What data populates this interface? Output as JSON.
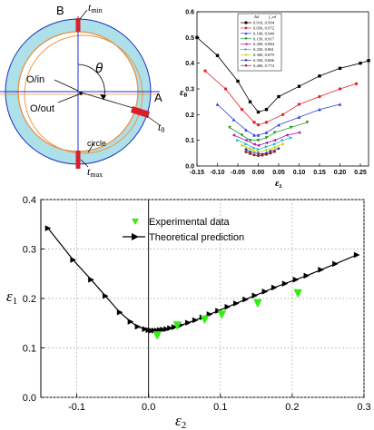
{
  "diagram": {
    "label_B": "B",
    "label_A": "A",
    "t_min": {
      "base": "t",
      "sub": "min"
    },
    "t_theta": {
      "base": "t",
      "sub": "θ"
    },
    "t_max": {
      "base": "t",
      "sub": "max"
    },
    "theta": "θ",
    "o_in": "O/in",
    "o_out": "O/out",
    "circle": "circle"
  },
  "chart_data": [
    {
      "type": "line",
      "xlabel": {
        "base": "ε",
        "sub": "z"
      },
      "ylabel": {
        "base": "ε",
        "sub": "θ"
      },
      "xlim": [
        -0.15,
        0.27
      ],
      "ylim": [
        0.0,
        0.6
      ],
      "xticks": [
        "-0.15",
        "-0.10",
        "-0.05",
        "0.00",
        "0.05",
        "0.10",
        "0.15",
        "0.20",
        "0.25"
      ],
      "yticks": [
        "0.0",
        "0.1",
        "0.2",
        "0.3",
        "0.4",
        "0.5",
        "0.6"
      ],
      "legend_header": [
        "Δd",
        "f_ed"
      ],
      "legend_position": "top-center",
      "series": [
        {
          "name": "0.010, 0.994",
          "color": "#000000",
          "marker": "square",
          "x": [
            -0.15,
            -0.1,
            -0.05,
            -0.02,
            0.0,
            0.02,
            0.05,
            0.1,
            0.15,
            0.2,
            0.25,
            0.27
          ],
          "y": [
            0.5,
            0.43,
            0.33,
            0.25,
            0.21,
            0.22,
            0.27,
            0.31,
            0.35,
            0.38,
            0.4,
            0.41
          ]
        },
        {
          "name": "0.050, 0.972",
          "color": "#e8202a",
          "marker": "circle",
          "x": [
            -0.13,
            -0.08,
            -0.04,
            -0.01,
            0.0,
            0.02,
            0.06,
            0.1,
            0.15,
            0.2,
            0.24
          ],
          "y": [
            0.37,
            0.3,
            0.22,
            0.17,
            0.16,
            0.17,
            0.2,
            0.24,
            0.27,
            0.3,
            0.32
          ]
        },
        {
          "name": "0.100, 0.940",
          "color": "#2a3fe0",
          "marker": "triangle-up",
          "x": [
            -0.1,
            -0.06,
            -0.03,
            -0.01,
            0.0,
            0.02,
            0.05,
            0.1,
            0.15,
            0.2
          ],
          "y": [
            0.24,
            0.18,
            0.14,
            0.12,
            0.12,
            0.13,
            0.16,
            0.19,
            0.22,
            0.24
          ]
        },
        {
          "name": "0.150, 0.917",
          "color": "#1f9a1f",
          "marker": "triangle-down",
          "x": [
            -0.07,
            -0.04,
            -0.02,
            0.0,
            0.02,
            0.04,
            0.08,
            0.12
          ],
          "y": [
            0.15,
            0.12,
            0.1,
            0.1,
            0.11,
            0.13,
            0.15,
            0.17
          ]
        },
        {
          "name": "0.200, 0.884",
          "color": "#b012b0",
          "marker": "triangle-left",
          "x": [
            -0.06,
            -0.03,
            -0.01,
            0.0,
            0.02,
            0.04,
            0.07,
            0.1
          ],
          "y": [
            0.12,
            0.1,
            0.085,
            0.08,
            0.09,
            0.1,
            0.12,
            0.13
          ]
        },
        {
          "name": "0.250, 0.861",
          "color": "#10c0c8",
          "marker": "triangle-right",
          "x": [
            -0.05,
            -0.03,
            -0.01,
            0.0,
            0.02,
            0.04,
            0.06,
            0.08
          ],
          "y": [
            0.1,
            0.085,
            0.07,
            0.065,
            0.075,
            0.085,
            0.1,
            0.11
          ]
        },
        {
          "name": "0.300, 0.879",
          "color": "#d8c400",
          "marker": "diamond",
          "x": [
            -0.04,
            -0.02,
            -0.01,
            0.0,
            0.02,
            0.04,
            0.06
          ],
          "y": [
            0.08,
            0.068,
            0.058,
            0.055,
            0.062,
            0.072,
            0.085
          ]
        },
        {
          "name": "0.350, 0.806",
          "color": "#203a90",
          "marker": "star",
          "x": [
            -0.03,
            -0.02,
            0.0,
            0.01,
            0.02,
            0.03,
            0.05
          ],
          "y": [
            0.065,
            0.055,
            0.048,
            0.046,
            0.05,
            0.058,
            0.068
          ]
        },
        {
          "name": "0.400, 0.774",
          "color": "#8a2020",
          "marker": "pentagon",
          "x": [
            -0.03,
            -0.02,
            -0.01,
            0.0,
            0.01,
            0.02,
            0.03,
            0.04
          ],
          "y": [
            0.055,
            0.048,
            0.043,
            0.04,
            0.042,
            0.045,
            0.05,
            0.056
          ]
        }
      ]
    },
    {
      "type": "line",
      "xlabel": {
        "base": "ε",
        "sub": "2"
      },
      "ylabel": {
        "base": "ε",
        "sub": "1"
      },
      "xlim": [
        -0.15,
        0.3
      ],
      "ylim": [
        0.0,
        0.4
      ],
      "xticks": [
        "-0.1",
        "0.0",
        "0.1",
        "0.2",
        "0.3"
      ],
      "yticks": [
        "0.0",
        "0.1",
        "0.2",
        "0.3",
        "0.4"
      ],
      "grid": true,
      "legend_position": "top-center",
      "series": [
        {
          "name": "Experimental data",
          "color": "#33ee11",
          "marker": "triangle-down",
          "style": "markers",
          "x": [
            0.012,
            0.04,
            0.078,
            0.102,
            0.152,
            0.208
          ],
          "y": [
            0.125,
            0.145,
            0.157,
            0.167,
            0.19,
            0.21
          ]
        },
        {
          "name": "Theoretical prediction",
          "color": "#000000",
          "marker": "triangle-right",
          "style": "line+markers",
          "x": [
            -0.14,
            -0.105,
            -0.08,
            -0.06,
            -0.04,
            -0.025,
            -0.015,
            -0.005,
            0.0,
            0.004,
            0.008,
            0.012,
            0.016,
            0.02,
            0.025,
            0.03,
            0.036,
            0.045,
            0.055,
            0.065,
            0.075,
            0.085,
            0.097,
            0.11,
            0.122,
            0.135,
            0.148,
            0.162,
            0.175,
            0.19,
            0.205,
            0.22,
            0.24,
            0.26,
            0.29
          ],
          "y": [
            0.342,
            0.278,
            0.238,
            0.205,
            0.172,
            0.153,
            0.143,
            0.138,
            0.136,
            0.135,
            0.135,
            0.135,
            0.136,
            0.137,
            0.138,
            0.14,
            0.142,
            0.146,
            0.151,
            0.156,
            0.162,
            0.168,
            0.175,
            0.183,
            0.19,
            0.198,
            0.206,
            0.214,
            0.222,
            0.23,
            0.238,
            0.246,
            0.258,
            0.27,
            0.288
          ]
        }
      ]
    }
  ]
}
